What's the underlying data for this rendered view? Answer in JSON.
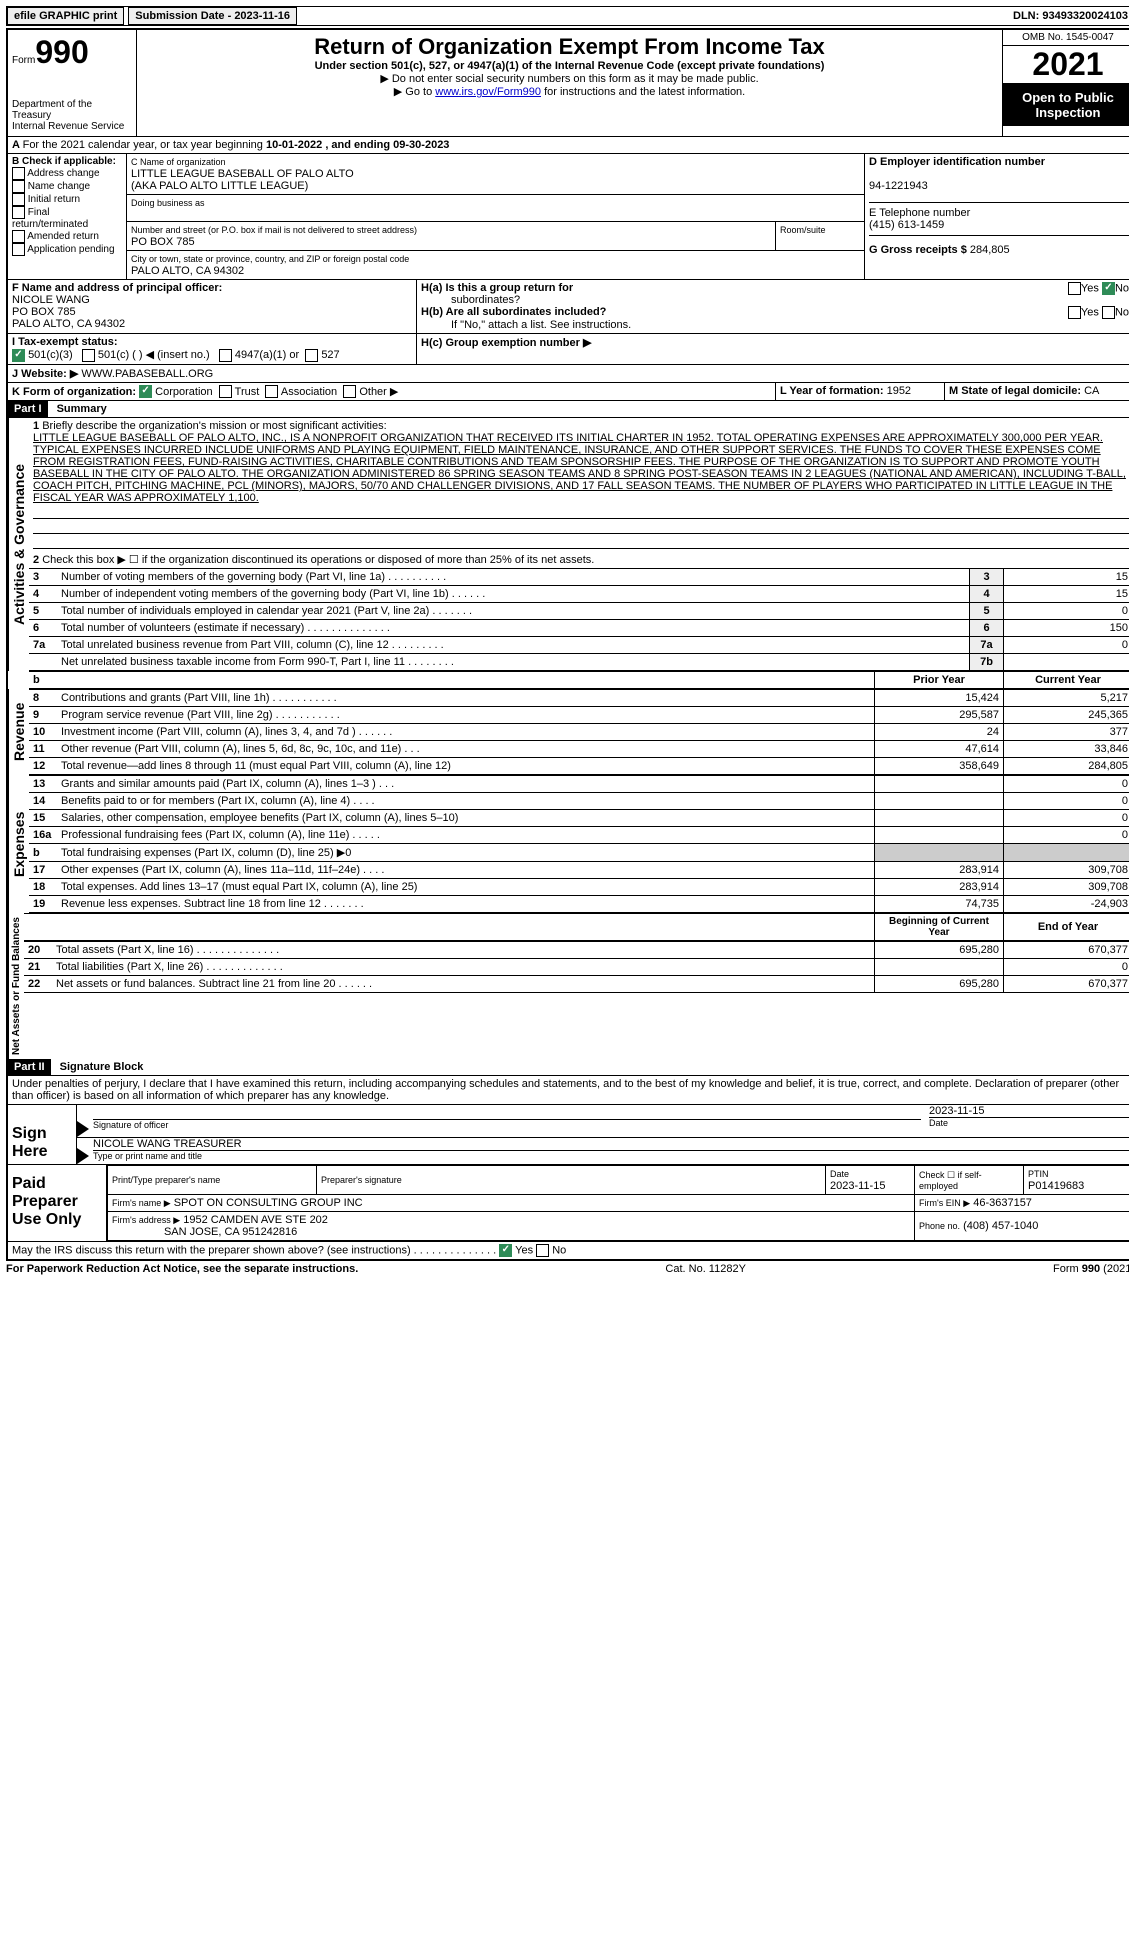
{
  "top": {
    "efile": "efile GRAPHIC print",
    "submission_label": "Submission Date - 2023-11-16",
    "dln_label": "DLN: 93493320024103"
  },
  "header": {
    "form_prefix": "Form",
    "form_number": "990",
    "dept1": "Department of the Treasury",
    "dept2": "Internal Revenue Service",
    "title": "Return of Organization Exempt From Income Tax",
    "sub1": "Under section 501(c), 527, or 4947(a)(1) of the Internal Revenue Code (except private foundations)",
    "sub2": "▶ Do not enter social security numbers on this form as it may be made public.",
    "sub3_pre": "▶ Go to ",
    "sub3_link": "www.irs.gov/Form990",
    "sub3_post": " for instructions and the latest information.",
    "omb": "OMB No. 1545-0047",
    "year": "2021",
    "inspection1": "Open to Public",
    "inspection2": "Inspection"
  },
  "lineA": {
    "text_pre": "For the 2021 calendar year, or tax year beginning ",
    "begin": "10-01-2022",
    "mid": " , and ending ",
    "end": "09-30-2023"
  },
  "boxB": {
    "title": "B Check if applicable:",
    "opts": [
      "Address change",
      "Name change",
      "Initial return",
      "Final return/terminated",
      "Amended return",
      "Application pending"
    ]
  },
  "boxC": {
    "label": "C Name of organization",
    "name1": "LITTLE LEAGUE BASEBALL OF PALO ALTO",
    "name2": "(AKA PALO ALTO LITTLE LEAGUE)",
    "dba_label": "Doing business as",
    "addr_label": "Number and street (or P.O. box if mail is not delivered to street address)",
    "addr": "PO BOX 785",
    "room_label": "Room/suite",
    "city_label": "City or town, state or province, country, and ZIP or foreign postal code",
    "city": "PALO ALTO, CA  94302"
  },
  "boxD": {
    "label": "D Employer identification number",
    "value": "94-1221943"
  },
  "boxE": {
    "label": "E Telephone number",
    "value": "(415) 613-1459"
  },
  "boxG": {
    "label": "G Gross receipts $",
    "value": "284,805"
  },
  "boxF": {
    "label": "F Name and address of principal officer:",
    "line1": "NICOLE WANG",
    "line2": "PO BOX 785",
    "line3": "PALO ALTO, CA  94302"
  },
  "boxH": {
    "a_label": "H(a)  Is this a group return for",
    "a_label2": "subordinates?",
    "b_label": "H(b)  Are all subordinates included?",
    "b_note": "If \"No,\" attach a list. See instructions.",
    "c_label": "H(c)  Group exemption number ▶",
    "yes": "Yes",
    "no": "No"
  },
  "boxI": {
    "label": "I    Tax-exempt status:",
    "o1": "501(c)(3)",
    "o2": "501(c) (  ) ◀ (insert no.)",
    "o3": "4947(a)(1) or",
    "o4": "527"
  },
  "boxJ": {
    "label": "J   Website: ▶",
    "value": "WWW.PABASEBALL.ORG"
  },
  "boxK": {
    "label": "K Form of organization:",
    "o1": "Corporation",
    "o2": "Trust",
    "o3": "Association",
    "o4": "Other ▶"
  },
  "boxL": {
    "label": "L Year of formation:",
    "value": "1952"
  },
  "boxM": {
    "label": "M State of legal domicile:",
    "value": "CA"
  },
  "part1": {
    "header": "Part I",
    "title": "Summary",
    "sectA": "Activities & Governance",
    "sectR": "Revenue",
    "sectE": "Expenses",
    "sectN": "Net Assets or Fund Balances",
    "q1": "Briefly describe the organization's mission or most significant activities:",
    "mission": "LITTLE LEAGUE BASEBALL OF PALO ALTO, INC., IS A NONPROFIT ORGANIZATION THAT RECEIVED ITS INITIAL CHARTER IN 1952. TOTAL OPERATING EXPENSES ARE APPROXIMATELY 300,000 PER YEAR. TYPICAL EXPENSES INCURRED INCLUDE UNIFORMS AND PLAYING EQUIPMENT, FIELD MAINTENANCE, INSURANCE, AND OTHER SUPPORT SERVICES. THE FUNDS TO COVER THESE EXPENSES COME FROM REGISTRATION FEES, FUND-RAISING ACTIVITIES, CHARITABLE CONTRIBUTIONS AND TEAM SPONSORSHIP FEES. THE PURPOSE OF THE ORGANIZATION IS TO SUPPORT AND PROMOTE YOUTH BASEBALL IN THE CITY OF PALO ALTO. THE ORGANIZATION ADMINISTERED 86 SPRING SEASON TEAMS AND 8 SPRING POST-SEASON TEAMS IN 2 LEAGUES (NATIONAL AND AMERICAN), INCLUDING T-BALL, COACH PITCH, PITCHING MACHINE, PCL (MINORS), MAJORS, 50/70 AND CHALLENGER DIVISIONS, AND 17 FALL SEASON TEAMS. THE NUMBER OF PLAYERS WHO PARTICIPATED IN LITTLE LEAGUE IN THE FISCAL YEAR WAS APPROXIMATELY 1,100.",
    "q2": "Check this box ▶ ☐ if the organization discontinued its operations or disposed of more than 25% of its net assets.",
    "rows_gov": [
      {
        "n": "3",
        "t": "Number of voting members of the governing body (Part VI, line 1a)  .  .  .  .  .  .  .  .  .  .",
        "b": "3",
        "v": "15"
      },
      {
        "n": "4",
        "t": "Number of independent voting members of the governing body (Part VI, line 1b)  .  .  .  .  .  .",
        "b": "4",
        "v": "15"
      },
      {
        "n": "5",
        "t": "Total number of individuals employed in calendar year 2021 (Part V, line 2a)  .  .  .  .  .  .  .",
        "b": "5",
        "v": "0"
      },
      {
        "n": "6",
        "t": "Total number of volunteers (estimate if necessary)  .  .  .  .  .  .  .  .  .  .  .  .  .  .",
        "b": "6",
        "v": "150"
      },
      {
        "n": "7a",
        "t": "Total unrelated business revenue from Part VIII, column (C), line 12  .  .  .  .  .  .  .  .  .",
        "b": "7a",
        "v": "0"
      },
      {
        "n": "",
        "t": "Net unrelated business taxable income from Form 990-T, Part I, line 11  .  .  .  .  .  .  .  .",
        "b": "7b",
        "v": ""
      }
    ],
    "col_prior": "Prior Year",
    "col_current": "Current Year",
    "rows_rev": [
      {
        "n": "8",
        "t": "Contributions and grants (Part VIII, line 1h)  .  .  .  .  .  .  .  .  .  .  .",
        "p": "15,424",
        "c": "5,217"
      },
      {
        "n": "9",
        "t": "Program service revenue (Part VIII, line 2g)  .  .  .  .  .  .  .  .  .  .  .",
        "p": "295,587",
        "c": "245,365"
      },
      {
        "n": "10",
        "t": "Investment income (Part VIII, column (A), lines 3, 4, and 7d )  .  .  .  .  .  .",
        "p": "24",
        "c": "377"
      },
      {
        "n": "11",
        "t": "Other revenue (Part VIII, column (A), lines 5, 6d, 8c, 9c, 10c, and 11e)  .  .  .",
        "p": "47,614",
        "c": "33,846"
      },
      {
        "n": "12",
        "t": "Total revenue—add lines 8 through 11 (must equal Part VIII, column (A), line 12)",
        "p": "358,649",
        "c": "284,805"
      }
    ],
    "rows_exp": [
      {
        "n": "13",
        "t": "Grants and similar amounts paid (Part IX, column (A), lines 1–3 )  .  .  .",
        "p": "",
        "c": "0"
      },
      {
        "n": "14",
        "t": "Benefits paid to or for members (Part IX, column (A), line 4)  .  .  .  .",
        "p": "",
        "c": "0"
      },
      {
        "n": "15",
        "t": "Salaries, other compensation, employee benefits (Part IX, column (A), lines 5–10)",
        "p": "",
        "c": "0"
      },
      {
        "n": "16a",
        "t": "Professional fundraising fees (Part IX, column (A), line 11e)  .  .  .  .  .",
        "p": "",
        "c": "0"
      },
      {
        "n": "b",
        "t": "Total fundraising expenses (Part IX, column (D), line 25) ▶0",
        "p": "shade",
        "c": "shade"
      },
      {
        "n": "17",
        "t": "Other expenses (Part IX, column (A), lines 11a–11d, 11f–24e)  .  .  .  .",
        "p": "283,914",
        "c": "309,708"
      },
      {
        "n": "18",
        "t": "Total expenses. Add lines 13–17 (must equal Part IX, column (A), line 25)",
        "p": "283,914",
        "c": "309,708"
      },
      {
        "n": "19",
        "t": "Revenue less expenses. Subtract line 18 from line 12  .  .  .  .  .  .  .",
        "p": "74,735",
        "c": "-24,903"
      }
    ],
    "col_begin": "Beginning of Current Year",
    "col_end": "End of Year",
    "rows_net": [
      {
        "n": "20",
        "t": "Total assets (Part X, line 16)  .  .  .  .  .  .  .  .  .  .  .  .  .  .",
        "p": "695,280",
        "c": "670,377"
      },
      {
        "n": "21",
        "t": "Total liabilities (Part X, line 26)  .  .  .  .  .  .  .  .  .  .  .  .  .",
        "p": "",
        "c": "0"
      },
      {
        "n": "22",
        "t": "Net assets or fund balances. Subtract line 21 from line 20  .  .  .  .  .  .",
        "p": "695,280",
        "c": "670,377"
      }
    ]
  },
  "part2": {
    "header": "Part II",
    "title": "Signature Block",
    "perjury": "Under penalties of perjury, I declare that I have examined this return, including accompanying schedules and statements, and to the best of my knowledge and belief, it is true, correct, and complete. Declaration of preparer (other than officer) is based on all information of which preparer has any knowledge.",
    "sign_here": "Sign Here",
    "sig_officer": "Signature of officer",
    "sig_date": "2023-11-15",
    "date_label": "Date",
    "officer_name": "NICOLE WANG  TREASURER",
    "officer_label": "Type or print name and title",
    "paid": "Paid Preparer Use Only",
    "prep_name_label": "Print/Type preparer's name",
    "prep_sig_label": "Preparer's signature",
    "prep_date_label": "Date",
    "prep_date": "2023-11-15",
    "self_emp": "Check ☐ if self-employed",
    "ptin_label": "PTIN",
    "ptin": "P01419683",
    "firm_name_label": "Firm's name    ▶",
    "firm_name": "SPOT ON CONSULTING GROUP INC",
    "firm_ein_label": "Firm's EIN ▶",
    "firm_ein": "46-3637157",
    "firm_addr_label": "Firm's address ▶",
    "firm_addr1": "1952 CAMDEN AVE STE 202",
    "firm_addr2": "SAN JOSE, CA  951242816",
    "firm_phone_label": "Phone no.",
    "firm_phone": "(408) 457-1040",
    "discuss": "May the IRS discuss this return with the preparer shown above? (see instructions)  .  .  .  .  .  .  .  .  .  .  .  .  .  ."
  },
  "footer": {
    "left": "For Paperwork Reduction Act Notice, see the separate instructions.",
    "mid": "Cat. No. 11282Y",
    "right": "Form 990 (2021)"
  }
}
